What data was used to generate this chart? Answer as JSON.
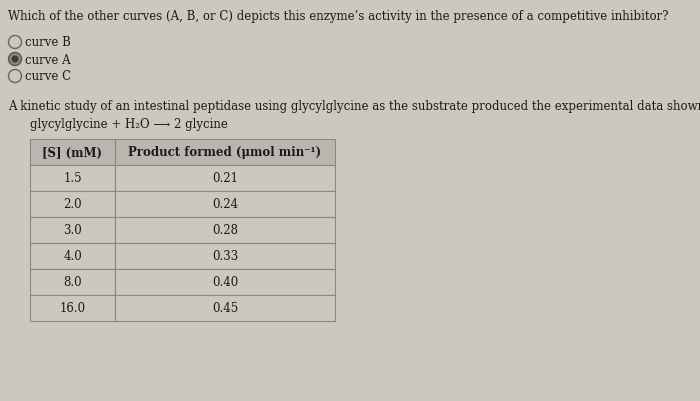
{
  "question": "Which of the other curves (A, B, or C) depicts this enzyme’s activity in the presence of a competitive inhibitor?",
  "options": [
    {
      "label": "curve B",
      "selected": false
    },
    {
      "label": "curve A",
      "selected": true
    },
    {
      "label": "curve C",
      "selected": false
    }
  ],
  "paragraph": "A kinetic study of an intestinal peptidase using glycylglycine as the substrate produced the experimental data shown in the table.",
  "equation": "glycylglycine + H₂O ⟶ 2 glycine",
  "table_headers": [
    "[S] (mM)",
    "Product formed (μmol min⁻¹)"
  ],
  "table_data": [
    [
      "1.5",
      "0.21"
    ],
    [
      "2.0",
      "0.24"
    ],
    [
      "3.0",
      "0.28"
    ],
    [
      "4.0",
      "0.33"
    ],
    [
      "8.0",
      "0.40"
    ],
    [
      "16.0",
      "0.45"
    ]
  ],
  "background_color": "#cbc9bf",
  "text_color": "#1a1a1a",
  "font_size": 8.5,
  "fig_width": 7.0,
  "fig_height": 4.02
}
